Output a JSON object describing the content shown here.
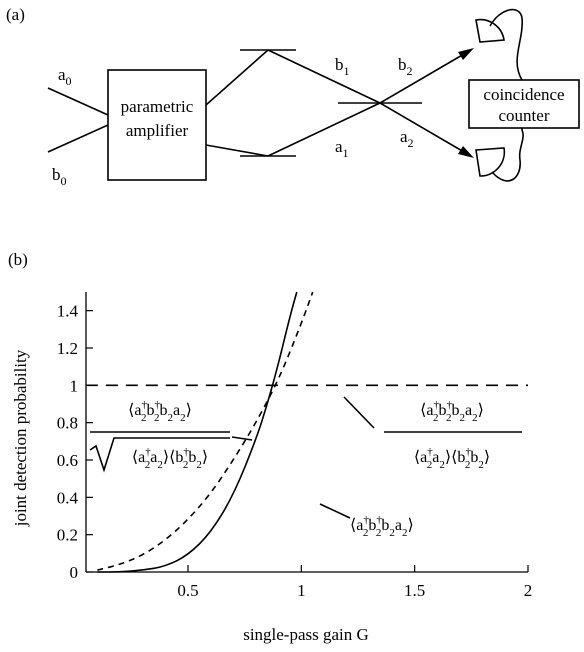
{
  "panel_a": {
    "panel_label": "(a)",
    "input_labels": [
      "a",
      "0",
      "b",
      "0"
    ],
    "amplifier_label_line1": "parametric",
    "amplifier_label_line2": "amplifier",
    "mode_labels": {
      "b1": [
        "b",
        "1"
      ],
      "a1": [
        "a",
        "1"
      ],
      "b2": [
        "b",
        "2"
      ],
      "a2": [
        "a",
        "2"
      ]
    },
    "counter_label_line1": "coincidence",
    "counter_label_line2": "counter"
  },
  "panel_b": {
    "panel_label": "(b)",
    "annotations": {
      "dashed_curve": "⟨a₂†b₂†b₂a₂⟩ / √(⟨a₂†a₂⟩⟨b₂†b₂⟩)",
      "flat_line": "⟨a₂†b₂†b₂a₂⟩ / (⟨a₂†a₂⟩⟨b₂†b₂⟩)",
      "solid_curve": "⟨a₂†b₂†b₂a₂⟩"
    }
  },
  "chart_data": {
    "type": "line",
    "title": "",
    "xlabel": "single-pass gain G",
    "ylabel": "joint detection probability",
    "xlim": [
      0.05,
      2.0
    ],
    "ylim": [
      0,
      1.5
    ],
    "xticks": [
      0.5,
      1,
      1.5,
      2
    ],
    "xtick_labels": [
      "0.5",
      "1",
      "1.5",
      "2"
    ],
    "yticks": [
      0,
      0.2,
      0.4,
      0.6,
      0.8,
      1,
      1.2,
      1.4
    ],
    "ytick_labels": [
      "0",
      "0.2",
      "0.4",
      "0.6",
      "0.8",
      "1",
      "1.2",
      "1.4"
    ],
    "grid": false,
    "series": [
      {
        "style": "solid",
        "x": [
          0.1,
          0.2,
          0.3,
          0.4,
          0.5,
          0.6,
          0.7,
          0.8,
          0.85,
          0.9,
          0.95,
          0.98
        ],
        "y": [
          0.0,
          0.0,
          0.01,
          0.03,
          0.09,
          0.21,
          0.41,
          0.71,
          0.9,
          1.12,
          1.37,
          1.52
        ]
      },
      {
        "style": "dashed",
        "x": [
          0.1,
          0.2,
          0.3,
          0.4,
          0.5,
          0.6,
          0.7,
          0.8,
          0.9,
          1.0,
          1.05
        ],
        "y": [
          0.01,
          0.04,
          0.09,
          0.17,
          0.28,
          0.42,
          0.6,
          0.8,
          1.03,
          1.33,
          1.52
        ]
      },
      {
        "style": "long-dashed",
        "x": [
          0.05,
          2.0
        ],
        "y": [
          1.0,
          1.0
        ]
      }
    ]
  }
}
